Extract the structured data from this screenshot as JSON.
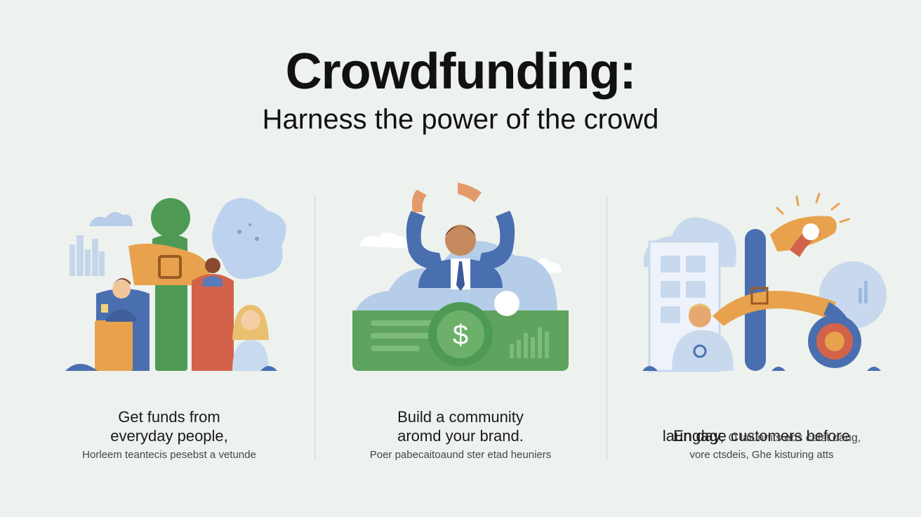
{
  "header": {
    "title": "Crowdfunding:",
    "subtitle": "Harness the power of the crowd"
  },
  "panels": [
    {
      "headline": "Get funds from\neveryday people,",
      "caption": "Horleem teantecis pesebst a vetunde"
    },
    {
      "headline": "Build a community\naromd your brand.",
      "caption": "Poer pabecaitoaund ster etad heuniers"
    },
    {
      "headline": "Engage customers before\nlaun day,",
      "headline_aside": "O laiunnits ebs catst daug,",
      "caption": "vore ctsdeis, Ghe kisturing atts"
    }
  ],
  "colors": {
    "background": "#eef2ee",
    "blue": "#4a6fb0",
    "green": "#4e9a54",
    "orange": "#e8a24d",
    "red": "#d2634a",
    "light_blue": "#b7cdea"
  },
  "icons": [
    "dollar-icon"
  ],
  "icon_text": {
    "dollar": "$"
  }
}
